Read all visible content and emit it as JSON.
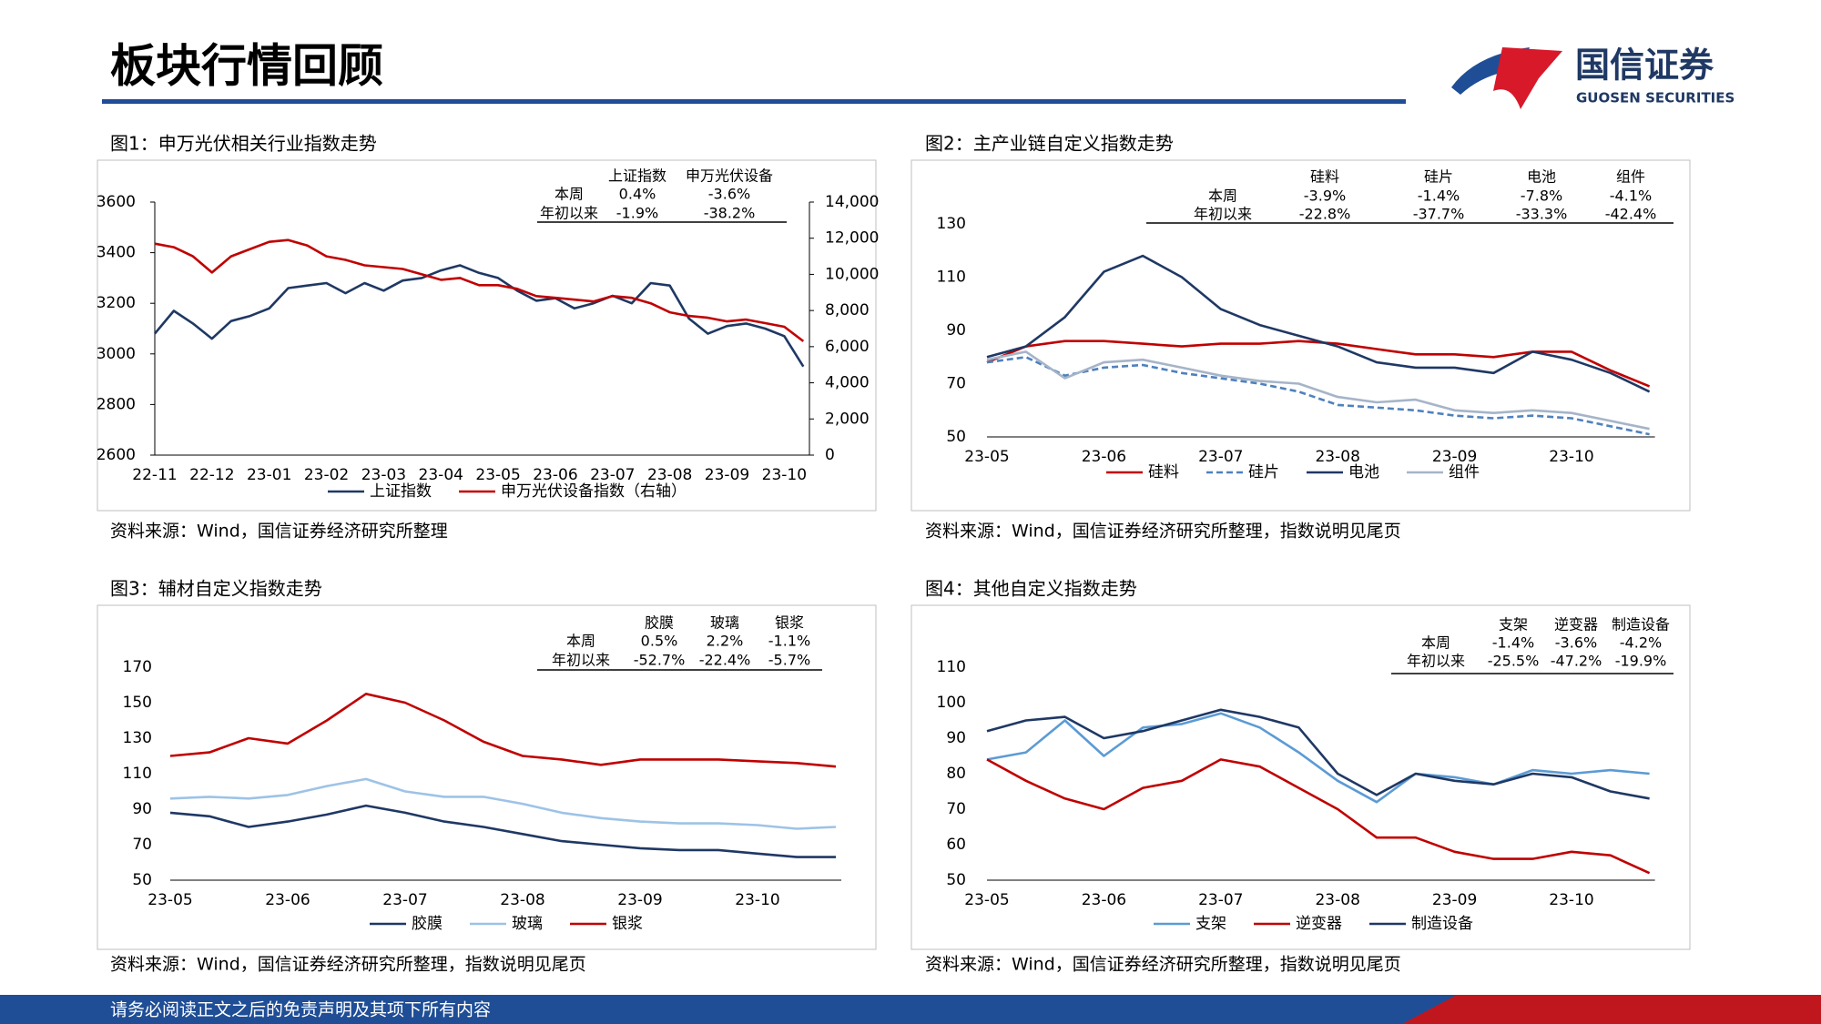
{
  "header": {
    "title": "板块行情回顾",
    "logo_cn": "国信证券",
    "logo_en": "GUOSEN SECURITIES"
  },
  "footer": {
    "text": "请务必阅读正文之后的免责声明及其项下所有内容"
  },
  "chart_data": [
    {
      "type": "line",
      "title": "图1：申万光伏相关行业指数走势",
      "source": "资料来源：Wind，国信证券经济研究所整理",
      "table": {
        "headers": [
          "上证指数",
          "申万光伏设备"
        ],
        "rows": [
          {
            "label": "本周",
            "values": [
              "0.4%",
              "-3.6%"
            ]
          },
          {
            "label": "年初以来",
            "values": [
              "-1.9%",
              "-38.2%"
            ]
          }
        ]
      },
      "categories": [
        "22-11",
        null,
        null,
        "22-12",
        null,
        null,
        "23-01",
        null,
        null,
        "23-02",
        null,
        null,
        "23-03",
        null,
        null,
        "23-04",
        null,
        null,
        "23-05",
        null,
        null,
        "23-06",
        null,
        null,
        "23-07",
        null,
        null,
        "23-08",
        null,
        null,
        "23-09",
        null,
        null,
        "23-10",
        null
      ],
      "ylim": [
        2600,
        3600
      ],
      "yticks": [
        2600,
        2800,
        3000,
        3200,
        3400,
        3600
      ],
      "y2lim": [
        0,
        14000
      ],
      "y2ticks": [
        0,
        {
          "value": 2000,
          "label": "2,000"
        },
        {
          "value": 4000,
          "label": "4,000"
        },
        {
          "value": 6000,
          "label": "6,000"
        },
        {
          "value": 8000,
          "label": "8,000"
        },
        {
          "value": 10000,
          "label": "10,000"
        },
        {
          "value": 12000,
          "label": "12,000"
        },
        {
          "value": 14000,
          "label": "14,000"
        }
      ],
      "series": [
        {
          "name": "上证指数",
          "color": "#1f3864",
          "values": [
            3080,
            3170,
            3120,
            3060,
            3130,
            3150,
            3180,
            3260,
            3270,
            3280,
            3240,
            3280,
            3250,
            3290,
            3300,
            3330,
            3350,
            3320,
            3300,
            3250,
            3210,
            3220,
            3180,
            3200,
            3230,
            3200,
            3280,
            3270,
            3140,
            3080,
            3110,
            3120,
            3100,
            3070,
            2950
          ]
        },
        {
          "name": "申万光伏设备指数（右轴）",
          "color": "#c00000",
          "axis": "y2",
          "values": [
            11700,
            11500,
            11000,
            10100,
            11000,
            11400,
            11800,
            11900,
            11600,
            11000,
            10800,
            10500,
            10400,
            10300,
            10000,
            9700,
            9800,
            9400,
            9400,
            9200,
            8800,
            8700,
            8600,
            8500,
            8800,
            8700,
            8400,
            7900,
            7700,
            7600,
            7400,
            7500,
            7300,
            7100,
            6300
          ]
        }
      ]
    },
    {
      "type": "line",
      "title": "图2：主产业链自定义指数走势",
      "source": "资料来源：Wind，国信证券经济研究所整理，指数说明见尾页",
      "table": {
        "headers": [
          "硅料",
          "硅片",
          "电池",
          "组件"
        ],
        "rows": [
          {
            "label": "本周",
            "values": [
              "-3.9%",
              "-1.4%",
              "-7.8%",
              "-4.1%"
            ]
          },
          {
            "label": "年初以来",
            "values": [
              "-22.8%",
              "-37.7%",
              "-33.3%",
              "-42.4%"
            ]
          }
        ]
      },
      "categories": [
        "23-05",
        null,
        null,
        "23-06",
        null,
        null,
        "23-07",
        null,
        null,
        "23-08",
        null,
        null,
        "23-09",
        null,
        null,
        "23-10",
        null,
        null
      ],
      "ylim": [
        50,
        130
      ],
      "yticks": [
        50,
        70,
        90,
        110,
        130
      ],
      "series": [
        {
          "name": "硅料",
          "color": "#c00000",
          "values": [
            78,
            84,
            86,
            86,
            85,
            84,
            85,
            85,
            86,
            85,
            83,
            81,
            81,
            80,
            82,
            82,
            75,
            69
          ]
        },
        {
          "name": "硅片",
          "color": "#4f81bd",
          "line_style": "dashed",
          "values": [
            78,
            80,
            73,
            76,
            77,
            74,
            72,
            70,
            67,
            62,
            61,
            60,
            58,
            57,
            58,
            57,
            54,
            51
          ]
        },
        {
          "name": "电池",
          "color": "#1f3864",
          "values": [
            80,
            84,
            95,
            112,
            118,
            110,
            98,
            92,
            88,
            84,
            78,
            76,
            76,
            74,
            82,
            79,
            74,
            67
          ]
        },
        {
          "name": "组件",
          "color": "#a6b4c8",
          "values": [
            79,
            82,
            72,
            78,
            79,
            76,
            73,
            71,
            70,
            65,
            63,
            64,
            60,
            59,
            60,
            59,
            56,
            53
          ]
        }
      ]
    },
    {
      "type": "line",
      "title": "图3：辅材自定义指数走势",
      "source": "资料来源：Wind，国信证券经济研究所整理，指数说明见尾页",
      "table": {
        "headers": [
          "胶膜",
          "玻璃",
          "银浆"
        ],
        "rows": [
          {
            "label": "本周",
            "values": [
              "0.5%",
              "2.2%",
              "-1.1%"
            ]
          },
          {
            "label": "年初以来",
            "values": [
              "-52.7%",
              "-22.4%",
              "-5.7%"
            ]
          }
        ]
      },
      "categories": [
        "23-05",
        null,
        null,
        "23-06",
        null,
        null,
        "23-07",
        null,
        null,
        "23-08",
        null,
        null,
        "23-09",
        null,
        null,
        "23-10",
        null,
        null
      ],
      "ylim": [
        50,
        170
      ],
      "yticks": [
        50,
        70,
        90,
        110,
        130,
        150,
        170
      ],
      "series": [
        {
          "name": "胶膜",
          "color": "#1f3864",
          "values": [
            88,
            86,
            80,
            83,
            87,
            92,
            88,
            83,
            80,
            76,
            72,
            70,
            68,
            67,
            67,
            65,
            63,
            63
          ]
        },
        {
          "name": "玻璃",
          "color": "#9dc3e6",
          "values": [
            96,
            97,
            96,
            98,
            103,
            107,
            100,
            97,
            97,
            93,
            88,
            85,
            83,
            82,
            82,
            81,
            79,
            80
          ]
        },
        {
          "name": "银浆",
          "color": "#c00000",
          "values": [
            120,
            122,
            130,
            127,
            140,
            155,
            150,
            140,
            128,
            120,
            118,
            115,
            118,
            118,
            118,
            117,
            116,
            114
          ]
        }
      ]
    },
    {
      "type": "line",
      "title": "图4：其他自定义指数走势",
      "source": "资料来源：Wind，国信证券经济研究所整理，指数说明见尾页",
      "table": {
        "headers": [
          "支架",
          "逆变器",
          "制造设备"
        ],
        "rows": [
          {
            "label": "本周",
            "values": [
              "-1.4%",
              "-3.6%",
              "-4.2%"
            ]
          },
          {
            "label": "年初以来",
            "values": [
              "-25.5%",
              "-47.2%",
              "-19.9%"
            ]
          }
        ]
      },
      "categories": [
        "23-05",
        null,
        null,
        "23-06",
        null,
        null,
        "23-07",
        null,
        null,
        "23-08",
        null,
        null,
        "23-09",
        null,
        null,
        "23-10",
        null,
        null
      ],
      "ylim": [
        50,
        110
      ],
      "yticks": [
        50,
        60,
        70,
        80,
        90,
        100,
        110
      ],
      "series": [
        {
          "name": "支架",
          "color": "#5b9bd5",
          "values": [
            84,
            86,
            95,
            85,
            93,
            94,
            97,
            93,
            86,
            78,
            72,
            80,
            79,
            77,
            81,
            80,
            81,
            80
          ]
        },
        {
          "name": "逆变器",
          "color": "#c00000",
          "values": [
            84,
            78,
            73,
            70,
            76,
            78,
            84,
            82,
            76,
            70,
            62,
            62,
            58,
            56,
            56,
            58,
            57,
            52
          ]
        },
        {
          "name": "制造设备",
          "color": "#1f3864",
          "values": [
            92,
            95,
            96,
            90,
            92,
            95,
            98,
            96,
            93,
            80,
            74,
            80,
            78,
            77,
            80,
            79,
            75,
            73
          ]
        }
      ]
    }
  ]
}
